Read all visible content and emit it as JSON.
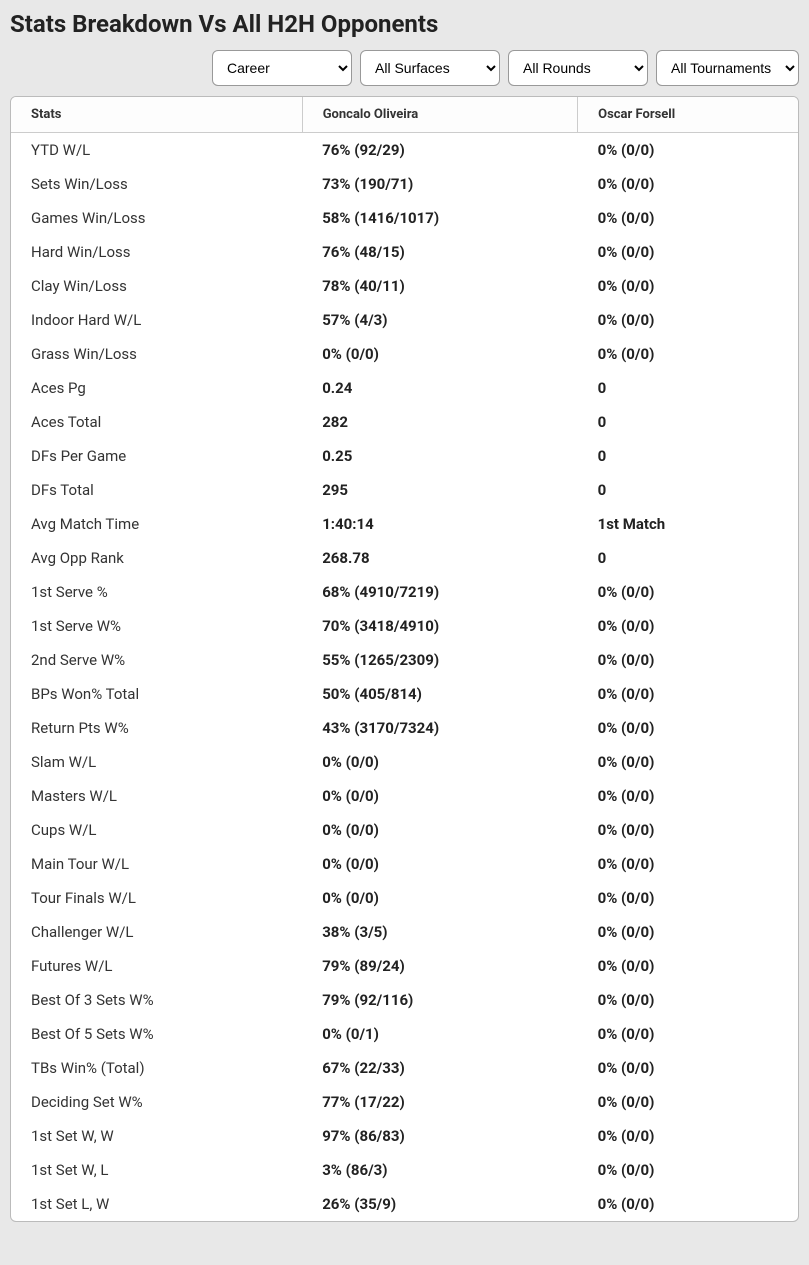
{
  "title": "Stats Breakdown Vs All H2H Opponents",
  "filters": {
    "period": "Career",
    "surface": "All Surfaces",
    "rounds": "All Rounds",
    "tournaments": "All Tournaments"
  },
  "columns": {
    "stats": "Stats",
    "player1": "Goncalo Oliveira",
    "player2": "Oscar Forsell"
  },
  "rows": [
    {
      "stat": "YTD W/L",
      "p1": "76% (92/29)",
      "p2": "0% (0/0)"
    },
    {
      "stat": "Sets Win/Loss",
      "p1": "73% (190/71)",
      "p2": "0% (0/0)"
    },
    {
      "stat": "Games Win/Loss",
      "p1": "58% (1416/1017)",
      "p2": "0% (0/0)"
    },
    {
      "stat": "Hard Win/Loss",
      "p1": "76% (48/15)",
      "p2": "0% (0/0)"
    },
    {
      "stat": "Clay Win/Loss",
      "p1": "78% (40/11)",
      "p2": "0% (0/0)"
    },
    {
      "stat": "Indoor Hard W/L",
      "p1": "57% (4/3)",
      "p2": "0% (0/0)"
    },
    {
      "stat": "Grass Win/Loss",
      "p1": "0% (0/0)",
      "p2": "0% (0/0)"
    },
    {
      "stat": "Aces Pg",
      "p1": "0.24",
      "p2": "0"
    },
    {
      "stat": "Aces Total",
      "p1": "282",
      "p2": "0"
    },
    {
      "stat": "DFs Per Game",
      "p1": "0.25",
      "p2": "0"
    },
    {
      "stat": "DFs Total",
      "p1": "295",
      "p2": "0"
    },
    {
      "stat": "Avg Match Time",
      "p1": "1:40:14",
      "p2": "1st Match"
    },
    {
      "stat": "Avg Opp Rank",
      "p1": "268.78",
      "p2": "0"
    },
    {
      "stat": "1st Serve %",
      "p1": "68% (4910/7219)",
      "p2": "0% (0/0)"
    },
    {
      "stat": "1st Serve W%",
      "p1": "70% (3418/4910)",
      "p2": "0% (0/0)"
    },
    {
      "stat": "2nd Serve W%",
      "p1": "55% (1265/2309)",
      "p2": "0% (0/0)"
    },
    {
      "stat": "BPs Won% Total",
      "p1": "50% (405/814)",
      "p2": "0% (0/0)"
    },
    {
      "stat": "Return Pts W%",
      "p1": "43% (3170/7324)",
      "p2": "0% (0/0)"
    },
    {
      "stat": "Slam W/L",
      "p1": "0% (0/0)",
      "p2": "0% (0/0)"
    },
    {
      "stat": "Masters W/L",
      "p1": "0% (0/0)",
      "p2": "0% (0/0)"
    },
    {
      "stat": "Cups W/L",
      "p1": "0% (0/0)",
      "p2": "0% (0/0)"
    },
    {
      "stat": "Main Tour W/L",
      "p1": "0% (0/0)",
      "p2": "0% (0/0)"
    },
    {
      "stat": "Tour Finals W/L",
      "p1": "0% (0/0)",
      "p2": "0% (0/0)"
    },
    {
      "stat": "Challenger W/L",
      "p1": "38% (3/5)",
      "p2": "0% (0/0)"
    },
    {
      "stat": "Futures W/L",
      "p1": "79% (89/24)",
      "p2": "0% (0/0)"
    },
    {
      "stat": "Best Of 3 Sets W%",
      "p1": "79% (92/116)",
      "p2": "0% (0/0)"
    },
    {
      "stat": "Best Of 5 Sets W%",
      "p1": "0% (0/1)",
      "p2": "0% (0/0)"
    },
    {
      "stat": "TBs Win% (Total)",
      "p1": "67% (22/33)",
      "p2": "0% (0/0)"
    },
    {
      "stat": "Deciding Set W%",
      "p1": "77% (17/22)",
      "p2": "0% (0/0)"
    },
    {
      "stat": "1st Set W, W",
      "p1": "97% (86/83)",
      "p2": "0% (0/0)"
    },
    {
      "stat": "1st Set W, L",
      "p1": "3% (86/3)",
      "p2": "0% (0/0)"
    },
    {
      "stat": "1st Set L, W",
      "p1": "26% (35/9)",
      "p2": "0% (0/0)"
    }
  ]
}
